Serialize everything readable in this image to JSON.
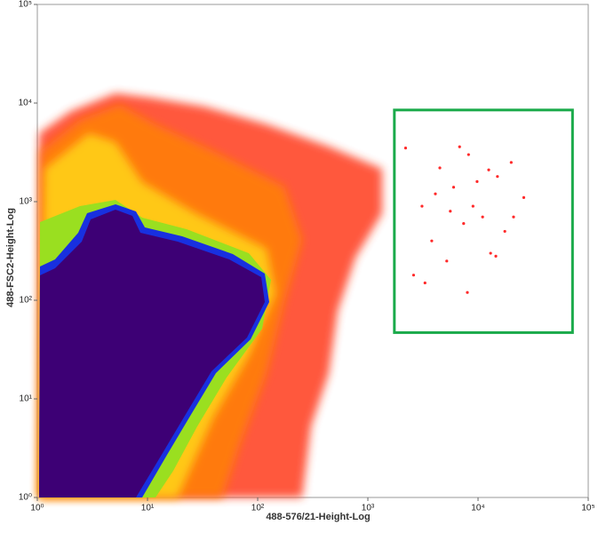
{
  "chart_data": {
    "type": "scatter",
    "x_label": "488-576/21-Height-Log",
    "y_label": "488-FSC2-Height-Log",
    "log_x": true,
    "log_y": true,
    "xlim": [
      1,
      100000
    ],
    "ylim": [
      1,
      100000
    ],
    "xticks": [
      {
        "value": 1,
        "label": "10⁰"
      },
      {
        "value": 10,
        "label": "10¹"
      },
      {
        "value": 100,
        "label": "10²"
      },
      {
        "value": 1000,
        "label": "10³"
      },
      {
        "value": 10000,
        "label": "10⁴"
      },
      {
        "value": 100000,
        "label": "10⁵"
      }
    ],
    "yticks": [
      {
        "value": 1,
        "label": "10⁰"
      },
      {
        "value": 10,
        "label": "10¹"
      },
      {
        "value": 100,
        "label": "10²"
      },
      {
        "value": 1000,
        "label": "10³"
      },
      {
        "value": 10000,
        "label": "10⁴"
      },
      {
        "value": 100000,
        "label": "10⁵"
      }
    ],
    "color": "#ff2a2a",
    "x": [
      2200,
      3100,
      4500,
      6000,
      8200,
      11000,
      15000,
      20000,
      26000,
      3800,
      5200,
      7400,
      9800,
      13000,
      17500,
      2600,
      4100,
      6800,
      9000,
      12500,
      21000,
      3300,
      5600,
      8000,
      14500
    ],
    "values": [
      3500,
      900,
      2200,
      1400,
      3000,
      700,
      1800,
      2500,
      1100,
      400,
      250,
      600,
      1600,
      300,
      500,
      180,
      1200,
      3600,
      900,
      2100,
      700,
      150,
      800,
      120,
      280
    ],
    "gate": {
      "color": "#1aaa4a",
      "x": [
        1740,
        72000
      ],
      "y": [
        47,
        8500
      ]
    }
  }
}
